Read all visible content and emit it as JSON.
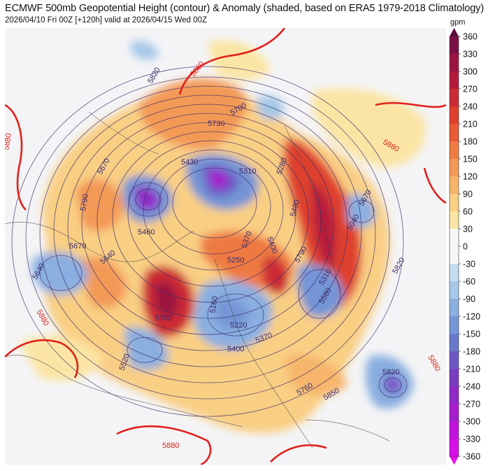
{
  "header": {
    "title": "ECMWF 500mb Geopotential Height (contour) & Anomaly (shaded, based on ERA5 1979-2018 Climatology)",
    "subtitle": "2026/04/10 Fri 00Z [+120h] valid at 2026/04/15 Wed 00Z"
  },
  "colorbar": {
    "unit": "gpm",
    "ticks": [
      "360",
      "330",
      "300",
      "270",
      "240",
      "210",
      "180",
      "150",
      "120",
      "90",
      "60",
      "30",
      "0",
      "-30",
      "-60",
      "-90",
      "-120",
      "-150",
      "-180",
      "-210",
      "-240",
      "-270",
      "-300",
      "-330",
      "-360"
    ],
    "colors": [
      "#7a0f45",
      "#9b1440",
      "#b81a3c",
      "#cc2b35",
      "#de402d",
      "#e85b34",
      "#ee7a43",
      "#f39957",
      "#f6b56a",
      "#f9cf84",
      "#fbe5a4",
      "#f7f7f7",
      "#f7f7f7",
      "#c4dcef",
      "#a6c7e8",
      "#8aafe0",
      "#7495d6",
      "#6a78cc",
      "#6d58c3",
      "#7a3dc0",
      "#8f2ac6",
      "#a71ecf",
      "#c014db",
      "#d80fe8"
    ]
  },
  "map": {
    "contour_labels": [
      {
        "text": "5820"
      },
      {
        "text": "5880"
      },
      {
        "text": "5730"
      },
      {
        "text": "5700"
      },
      {
        "text": "5670"
      },
      {
        "text": "5430"
      },
      {
        "text": "5310"
      },
      {
        "text": "5790"
      },
      {
        "text": "5280"
      },
      {
        "text": "5490"
      },
      {
        "text": "5460"
      },
      {
        "text": "5370"
      },
      {
        "text": "5400"
      },
      {
        "text": "5250"
      },
      {
        "text": "5160"
      },
      {
        "text": "5220"
      },
      {
        "text": "5700"
      },
      {
        "text": "5880"
      },
      {
        "text": "5820"
      },
      {
        "text": "5640"
      },
      {
        "text": "5670"
      },
      {
        "text": "5580"
      },
      {
        "text": "5400"
      },
      {
        "text": "5370"
      },
      {
        "text": "5520"
      },
      {
        "text": "5760"
      },
      {
        "text": "5850"
      },
      {
        "text": "5880"
      },
      {
        "text": "5880"
      },
      {
        "text": "5820"
      },
      {
        "text": "5790"
      },
      {
        "text": "5310"
      },
      {
        "text": "5640"
      },
      {
        "text": "5040"
      },
      {
        "text": "5670"
      },
      {
        "text": "5880"
      },
      {
        "text": "5880"
      }
    ],
    "colors": {
      "ridge_contour": "#e0201a",
      "height_contour": "#3a2a6a",
      "land_outline": "#444444"
    }
  }
}
